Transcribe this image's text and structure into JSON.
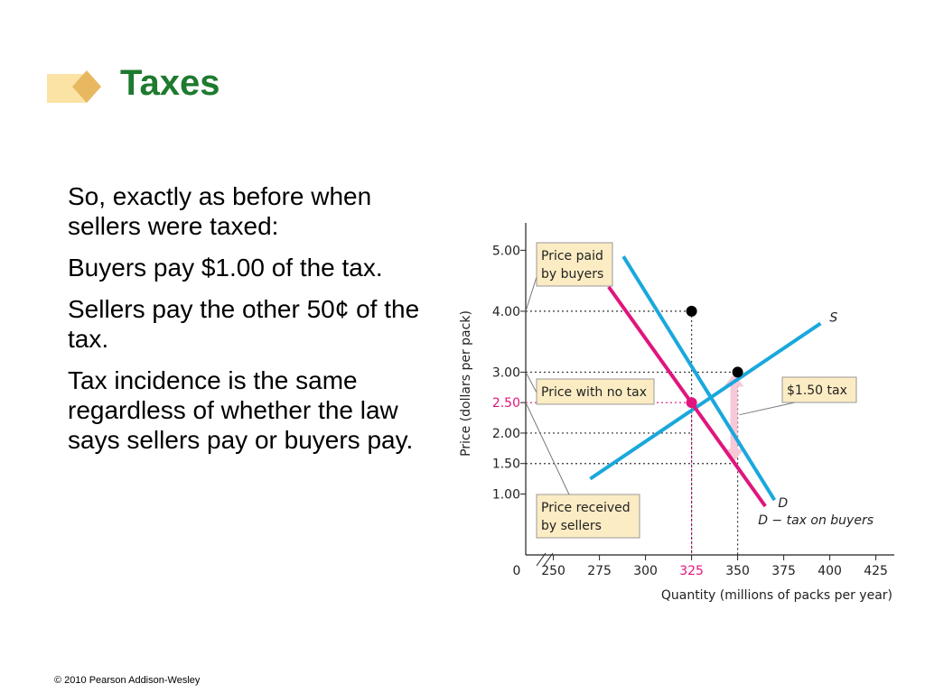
{
  "slide": {
    "title": "Taxes",
    "paragraphs": [
      "So, exactly as before when sellers were taxed:",
      "Buyers pay $1.00 of the tax.",
      "Sellers pay the other 50¢ of the tax.",
      "Tax incidence is the same regardless of whether the law says sellers pay or buyers pay."
    ],
    "footer": "© 2010 Pearson Addison-Wesley"
  },
  "colors": {
    "title": "#1e7a2e",
    "supply": "#1aa8dc",
    "demand": "#1aa8dc",
    "demand_tax": "#e0157d",
    "highlight": "#e0157d",
    "callout_bg": "#fbecc4",
    "tax_arrow": "#f7c8d8"
  },
  "chart_data": {
    "type": "line",
    "ylabel": "Price (dollars per pack)",
    "xlabel": "Quantity (millions of packs per year)",
    "x_zero_label": "0",
    "xticks": [
      250,
      275,
      300,
      325,
      350,
      375,
      400,
      425
    ],
    "x_highlight": 325,
    "yticks": [
      1.0,
      1.5,
      2.0,
      2.5,
      3.0,
      4.0,
      5.0
    ],
    "ytick_labels": [
      "1.00",
      "1.50",
      "2.00",
      "2.50",
      "3.00",
      "4.00",
      "5.00"
    ],
    "y_highlight": 2.5,
    "xlim": [
      235,
      435
    ],
    "ylim": [
      0,
      5.45
    ],
    "series": [
      {
        "name": "S",
        "color": "supply",
        "points": [
          [
            270,
            1.25
          ],
          [
            395,
            3.8
          ]
        ]
      },
      {
        "name": "D",
        "color": "demand",
        "points": [
          [
            288,
            4.9
          ],
          [
            370,
            0.9
          ]
        ]
      },
      {
        "name": "D − tax on buyers",
        "color": "demand_tax",
        "points": [
          [
            280,
            4.4
          ],
          [
            365,
            0.8
          ]
        ]
      }
    ],
    "points": [
      {
        "x": 325,
        "y": 4.0,
        "color": "#000000"
      },
      {
        "x": 350,
        "y": 3.0,
        "color": "#000000"
      },
      {
        "x": 325,
        "y": 2.5,
        "color": "#e0157d"
      }
    ],
    "guides": [
      {
        "x": 325,
        "y": 4.0,
        "color": "#333333"
      },
      {
        "x": 350,
        "y": 3.0,
        "color": "#333333"
      },
      {
        "x": 325,
        "y": 2.5,
        "color": "#e0157d"
      },
      {
        "x": null,
        "y": 2.0,
        "color": "#333333",
        "x_to": 325
      },
      {
        "x": null,
        "y": 1.5,
        "color": "#333333",
        "x_to": 350
      }
    ],
    "callouts": [
      {
        "label": "Price paid by buyers",
        "lines": [
          "Price paid",
          "by buyers"
        ],
        "target_y": 4.0
      },
      {
        "label": "Price with no tax",
        "lines": [
          "Price with no tax"
        ],
        "target_y": 3.0
      },
      {
        "label": "Price received by sellers",
        "lines": [
          "Price received",
          "by sellers"
        ],
        "target_y": 2.5
      },
      {
        "label": "$1.50 tax",
        "lines": [
          "$1.50 tax"
        ],
        "target_y": null
      }
    ],
    "curve_labels": {
      "S": "S",
      "D": "D",
      "D_tax": "D − tax on buyers"
    },
    "tax_arrow": {
      "x": 348,
      "y_top": 3.0,
      "y_bottom": 1.5
    }
  }
}
